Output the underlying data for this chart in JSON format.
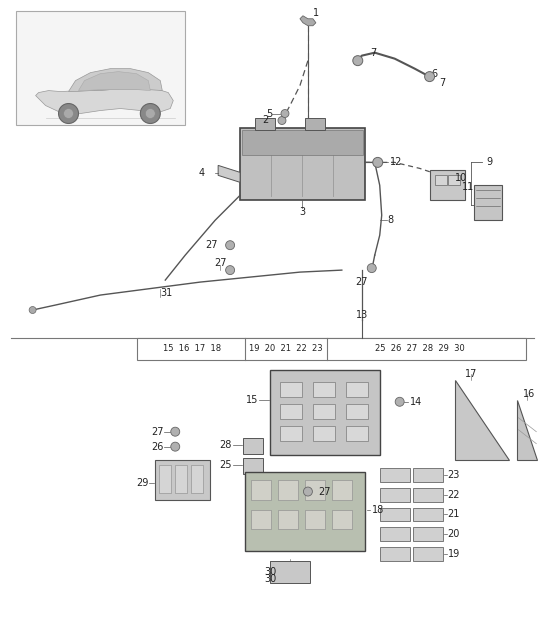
{
  "bg_color": "#ffffff",
  "line_color": "#555555",
  "text_color": "#222222",
  "label_fontsize": 7.0,
  "fig_w": 5.45,
  "fig_h": 6.28,
  "dpi": 100
}
